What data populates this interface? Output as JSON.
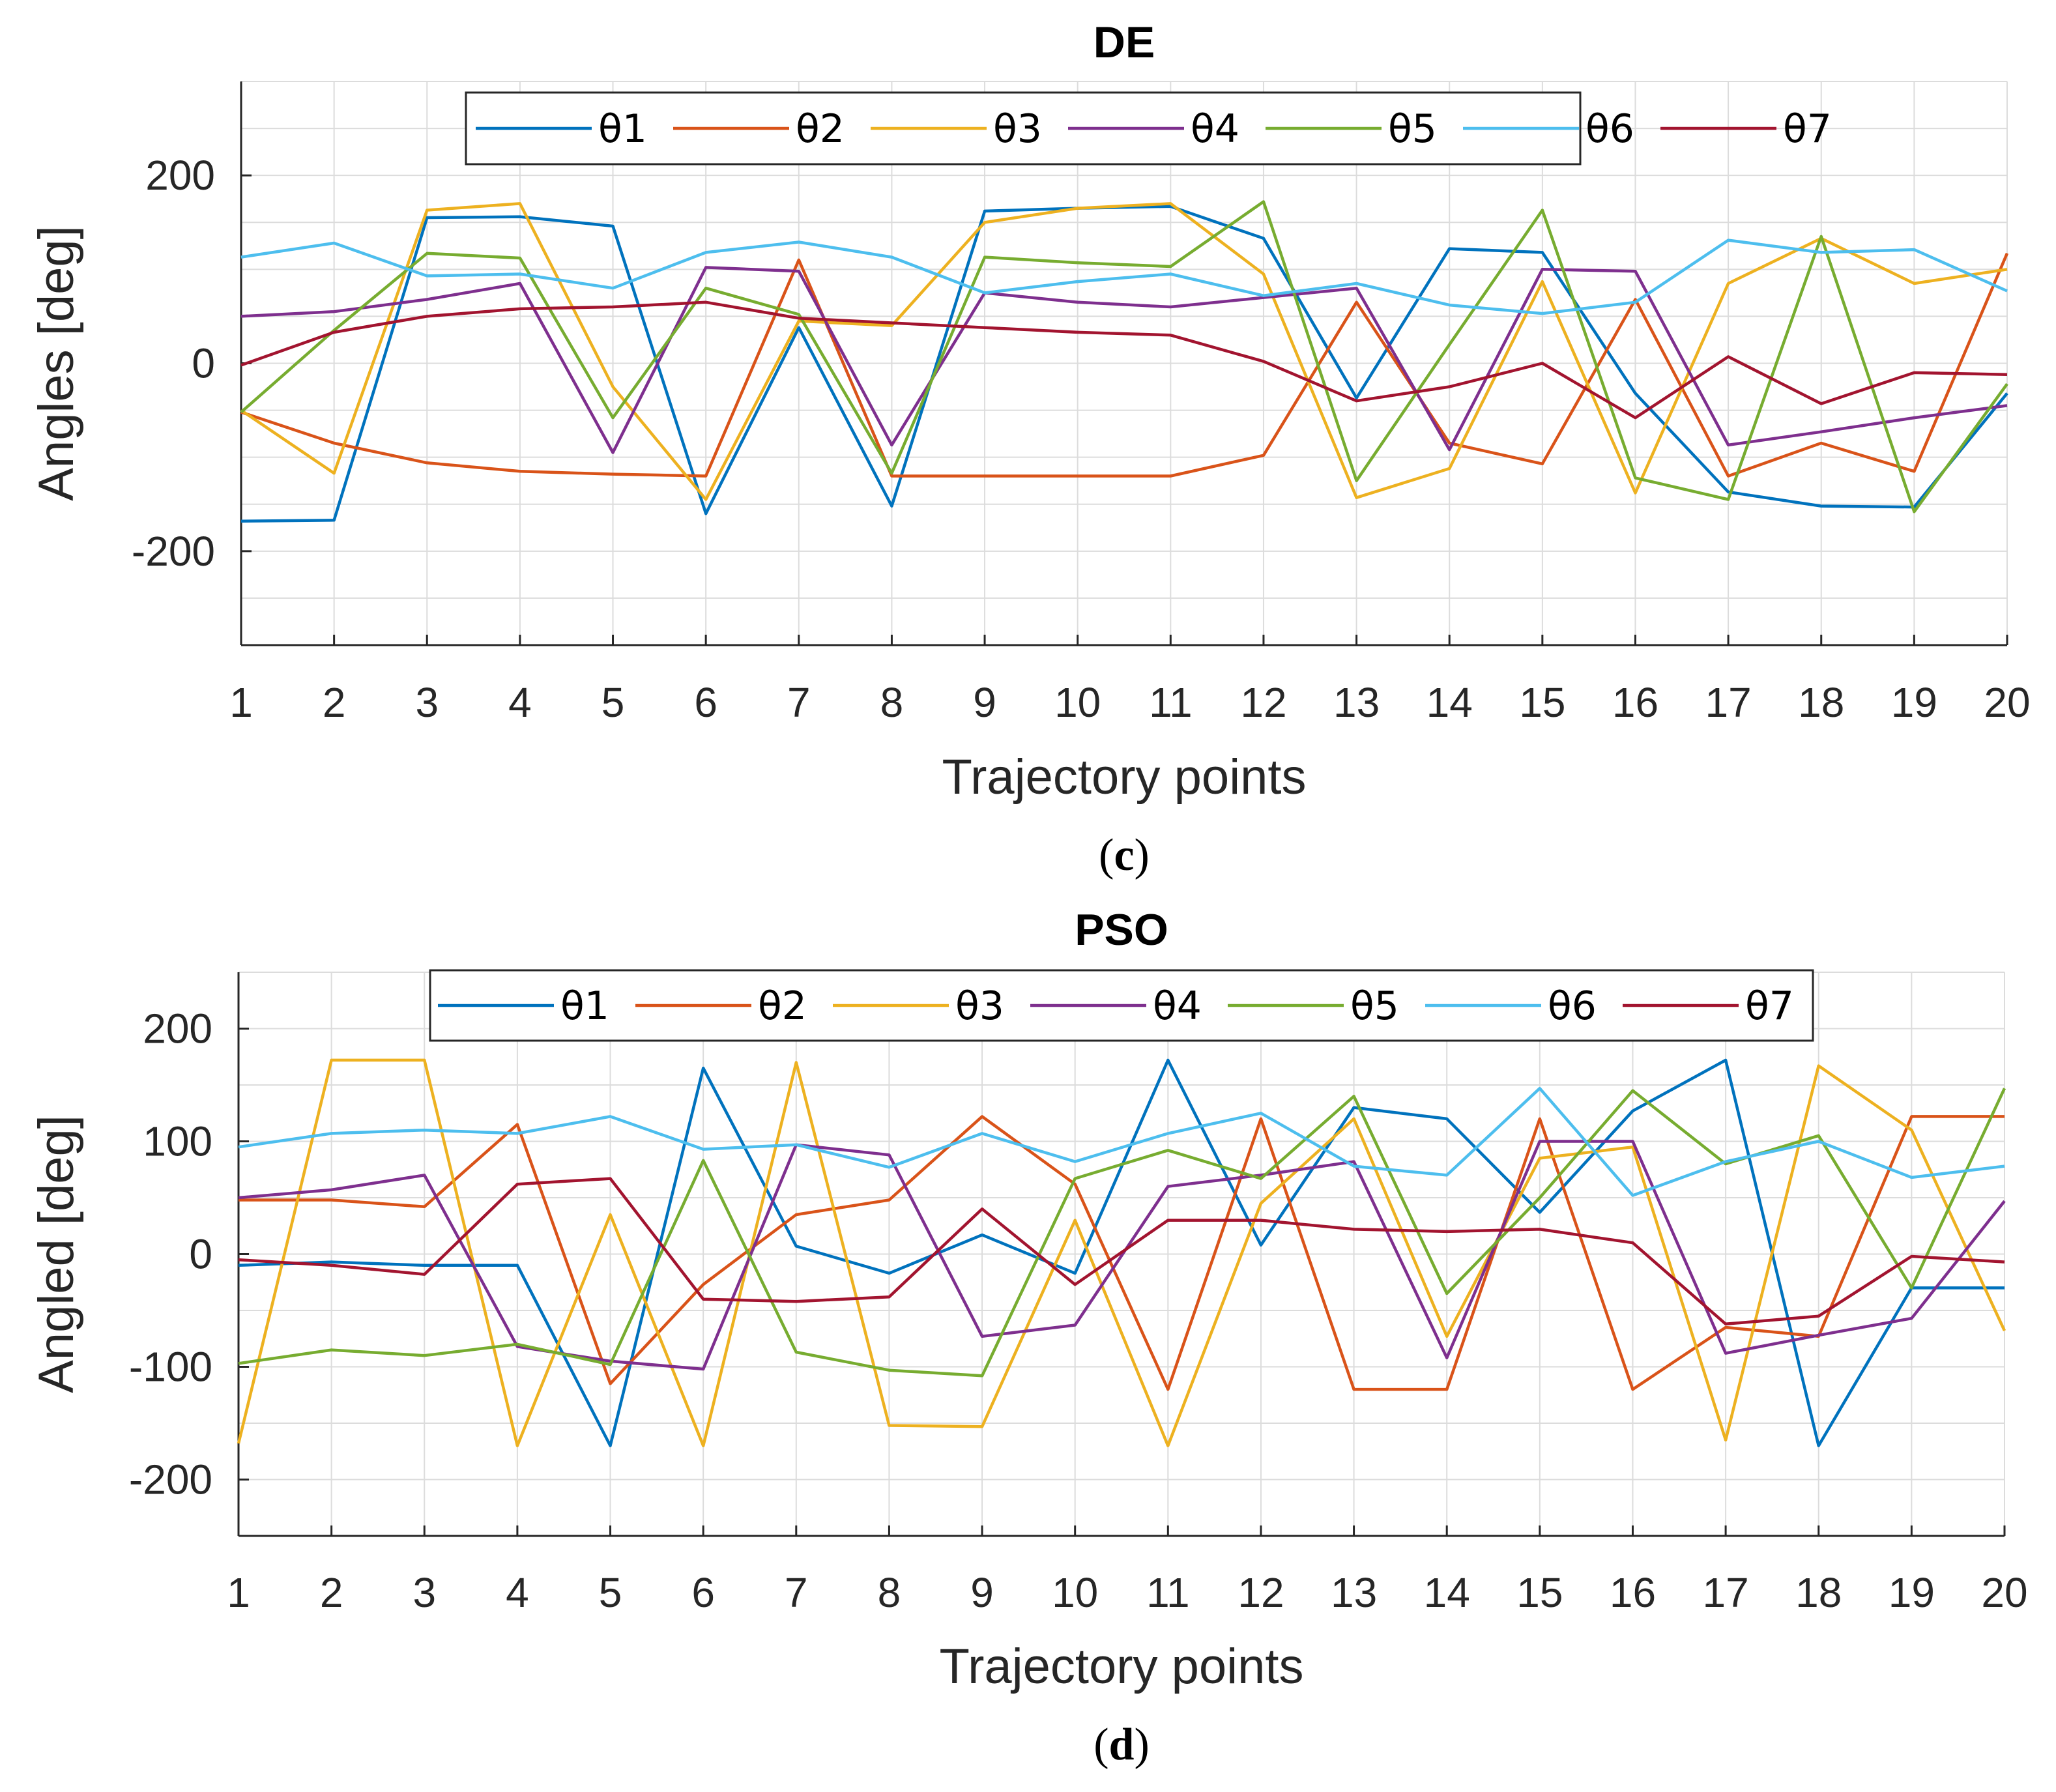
{
  "chart_data": [
    {
      "type": "line",
      "panel": "c",
      "title": "DE",
      "caption_open": "(",
      "caption_letter": "c",
      "caption_close": ")",
      "xlabel": "Trajectory points",
      "ylabel": "Angles [deg]",
      "xlim": [
        1,
        20
      ],
      "ylim": [
        -300,
        300
      ],
      "yticks": [
        -200,
        0,
        200
      ],
      "x": [
        1,
        2,
        3,
        4,
        5,
        6,
        7,
        8,
        9,
        10,
        11,
        12,
        13,
        14,
        15,
        16,
        17,
        18,
        19,
        20
      ],
      "legend_position": "top",
      "series": [
        {
          "name": "θ1",
          "color": "#0072BD",
          "values": [
            -168,
            -167,
            155,
            156,
            146,
            -160,
            38,
            -152,
            162,
            165,
            167,
            133,
            -37,
            122,
            118,
            -32,
            -137,
            -152,
            -153,
            -32
          ]
        },
        {
          "name": "θ2",
          "color": "#D95319",
          "values": [
            -52,
            -85,
            -106,
            -115,
            -118,
            -120,
            110,
            -120,
            -120,
            -120,
            -120,
            -98,
            65,
            -85,
            -107,
            68,
            -120,
            -85,
            -115,
            117
          ]
        },
        {
          "name": "θ3",
          "color": "#EDB120",
          "values": [
            -50,
            -117,
            163,
            170,
            -25,
            -145,
            45,
            40,
            150,
            165,
            170,
            95,
            -143,
            -112,
            87,
            -138,
            85,
            133,
            85,
            100
          ]
        },
        {
          "name": "θ4",
          "color": "#7E2F8E",
          "values": [
            50,
            55,
            68,
            85,
            -95,
            102,
            98,
            -87,
            75,
            65,
            60,
            70,
            80,
            -92,
            100,
            98,
            -87,
            -73,
            -58,
            -45
          ]
        },
        {
          "name": "θ5",
          "color": "#77AC30",
          "values": [
            -52,
            35,
            117,
            112,
            -58,
            80,
            52,
            -117,
            113,
            107,
            103,
            172,
            -125,
            20,
            163,
            -122,
            -145,
            135,
            -158,
            -22
          ]
        },
        {
          "name": "θ6",
          "color": "#4DBEEE",
          "values": [
            113,
            128,
            93,
            95,
            80,
            118,
            129,
            113,
            75,
            87,
            95,
            72,
            85,
            62,
            53,
            65,
            131,
            118,
            121,
            77
          ]
        },
        {
          "name": "θ7",
          "color": "#A2142F",
          "values": [
            -2,
            33,
            50,
            58,
            60,
            65,
            48,
            43,
            38,
            33,
            30,
            2,
            -40,
            -25,
            0,
            -58,
            7,
            -43,
            -10,
            -12
          ]
        }
      ]
    },
    {
      "type": "line",
      "panel": "d",
      "title": "PSO",
      "caption_open": "(",
      "caption_letter": "d",
      "caption_close": ")",
      "xlabel": "Trajectory points",
      "ylabel": "Angled [deg]",
      "xlim": [
        1,
        20
      ],
      "ylim": [
        -250,
        250
      ],
      "yticks": [
        -200,
        -100,
        0,
        100,
        200
      ],
      "x": [
        1,
        2,
        3,
        4,
        5,
        6,
        7,
        8,
        9,
        10,
        11,
        12,
        13,
        14,
        15,
        16,
        17,
        18,
        19,
        20
      ],
      "legend_position": "top",
      "series": [
        {
          "name": "θ1",
          "color": "#0072BD",
          "values": [
            -10,
            -7,
            -10,
            -10,
            -170,
            165,
            7,
            -17,
            17,
            -17,
            172,
            8,
            130,
            120,
            37,
            127,
            172,
            -170,
            -30,
            -30
          ]
        },
        {
          "name": "θ2",
          "color": "#D95319",
          "values": [
            48,
            48,
            42,
            115,
            -115,
            -27,
            35,
            48,
            122,
            62,
            -120,
            120,
            -120,
            -120,
            120,
            -120,
            -65,
            -73,
            122,
            122
          ]
        },
        {
          "name": "θ3",
          "color": "#EDB120",
          "values": [
            -168,
            172,
            172,
            -170,
            35,
            -170,
            170,
            -152,
            -153,
            30,
            -170,
            45,
            120,
            -73,
            85,
            95,
            -165,
            167,
            110,
            -68
          ]
        },
        {
          "name": "θ4",
          "color": "#7E2F8E",
          "values": [
            50,
            57,
            70,
            -82,
            -95,
            -102,
            97,
            88,
            -73,
            -63,
            60,
            70,
            82,
            -92,
            100,
            100,
            -88,
            -72,
            -57,
            47
          ]
        },
        {
          "name": "θ5",
          "color": "#77AC30",
          "values": [
            -97,
            -85,
            -90,
            -80,
            -98,
            83,
            -87,
            -103,
            -108,
            67,
            92,
            67,
            140,
            -35,
            50,
            145,
            80,
            105,
            -30,
            147
          ]
        },
        {
          "name": "θ6",
          "color": "#4DBEEE",
          "values": [
            95,
            107,
            110,
            107,
            122,
            93,
            97,
            77,
            107,
            82,
            107,
            125,
            78,
            70,
            147,
            52,
            82,
            100,
            68,
            78
          ]
        },
        {
          "name": "θ7",
          "color": "#A2142F",
          "values": [
            -5,
            -10,
            -18,
            62,
            67,
            -40,
            -42,
            -38,
            40,
            -27,
            30,
            30,
            22,
            20,
            22,
            10,
            -62,
            -55,
            -2,
            -7
          ]
        }
      ]
    }
  ]
}
